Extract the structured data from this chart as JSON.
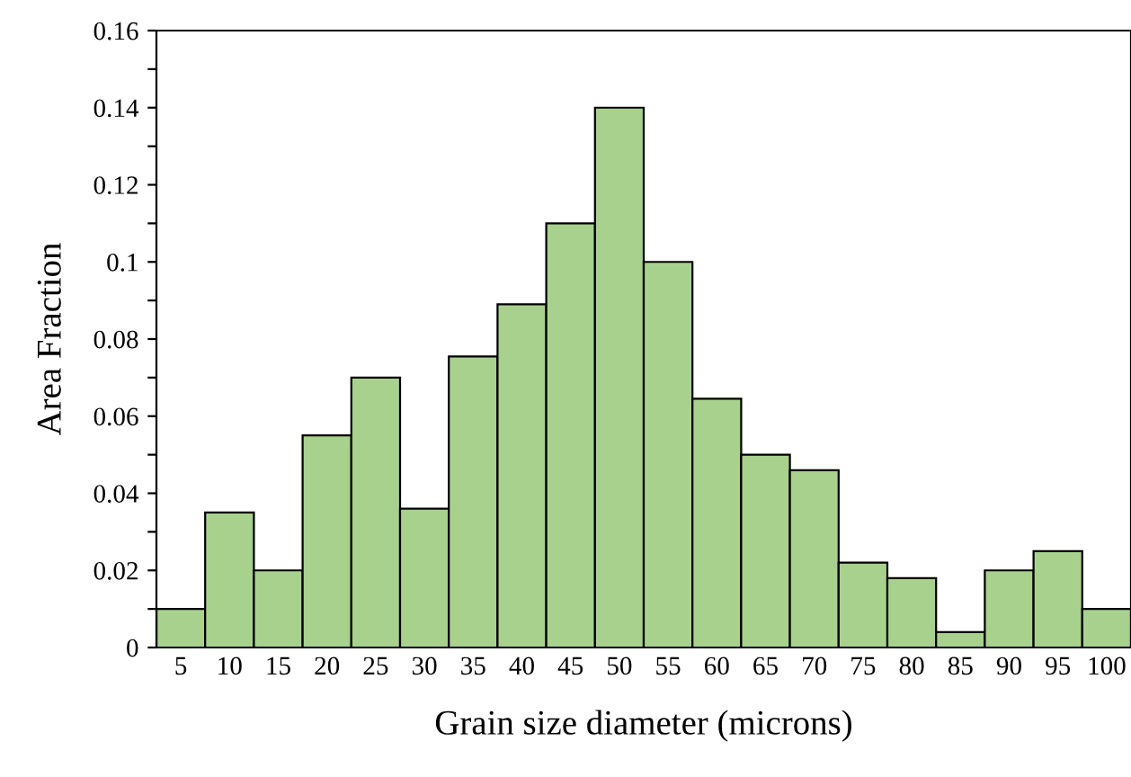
{
  "chart_data": {
    "type": "bar",
    "xlabel": "Grain size diameter (microns)",
    "ylabel": "Area Fraction",
    "categories": [
      "5",
      "10",
      "15",
      "20",
      "25",
      "30",
      "35",
      "40",
      "45",
      "50",
      "55",
      "60",
      "65",
      "70",
      "75",
      "80",
      "85",
      "90",
      "95",
      "100"
    ],
    "values": [
      0.01,
      0.035,
      0.02,
      0.055,
      0.07,
      0.036,
      0.0755,
      0.089,
      0.11,
      0.14,
      0.1,
      0.0645,
      0.05,
      0.046,
      0.022,
      0.018,
      0.004,
      0.02,
      0.025,
      0.01
    ],
    "color": "#a9d18e",
    "ylim": [
      0,
      0.16
    ],
    "yticks": [
      0,
      {
        "value": 0.01,
        "label": null
      },
      0.02,
      {
        "value": 0.03,
        "label": null
      },
      0.04,
      {
        "value": 0.05,
        "label": null
      },
      0.06,
      {
        "value": 0.07,
        "label": null
      },
      0.08,
      {
        "value": 0.09,
        "label": null
      },
      0.1,
      {
        "value": 0.11,
        "label": null
      },
      0.12,
      {
        "value": 0.13,
        "label": null
      },
      0.14,
      {
        "value": 0.15,
        "label": null
      },
      0.16
    ],
    "grid": false,
    "legend": false
  }
}
